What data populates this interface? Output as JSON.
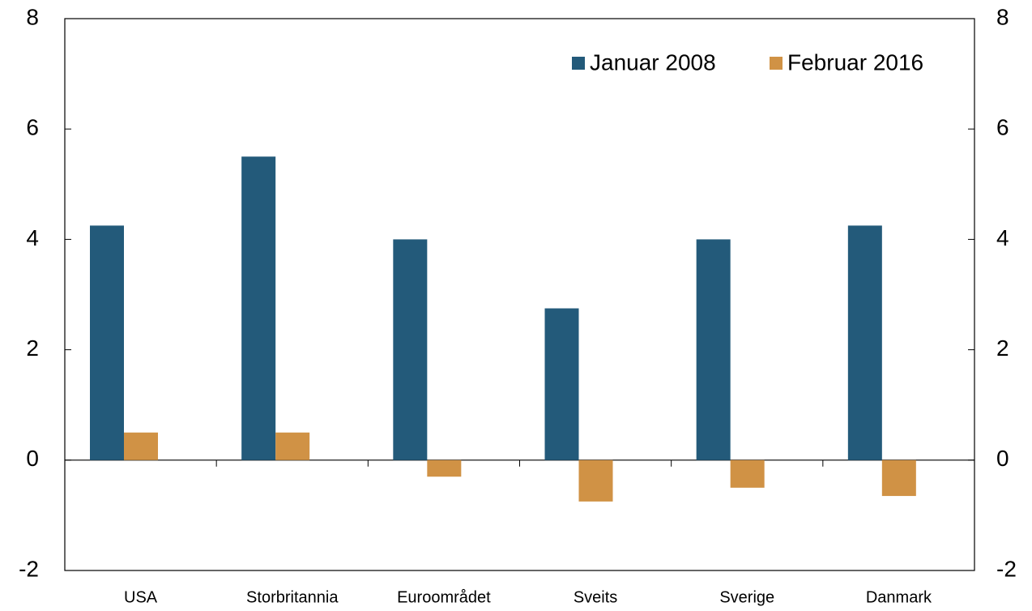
{
  "chart_data": {
    "type": "bar",
    "categories": [
      "USA",
      "Storbritannia",
      "Euroområdet",
      "Sveits",
      "Sverige",
      "Danmark"
    ],
    "series": [
      {
        "name": "Januar 2008",
        "color": "#235a7a",
        "values": [
          4.25,
          5.5,
          4.0,
          2.75,
          4.0,
          4.25
        ]
      },
      {
        "name": "Februar 2016",
        "color": "#d09245",
        "values": [
          0.5,
          0.5,
          -0.3,
          -0.75,
          -0.5,
          -0.65
        ]
      }
    ],
    "ylim": [
      -2,
      8
    ],
    "yticks": [
      -2,
      0,
      2,
      4,
      6,
      8
    ],
    "y2lim": [
      -2,
      8
    ],
    "y2ticks": [
      -2,
      0,
      2,
      4,
      6,
      8
    ],
    "legend": "upper right"
  }
}
